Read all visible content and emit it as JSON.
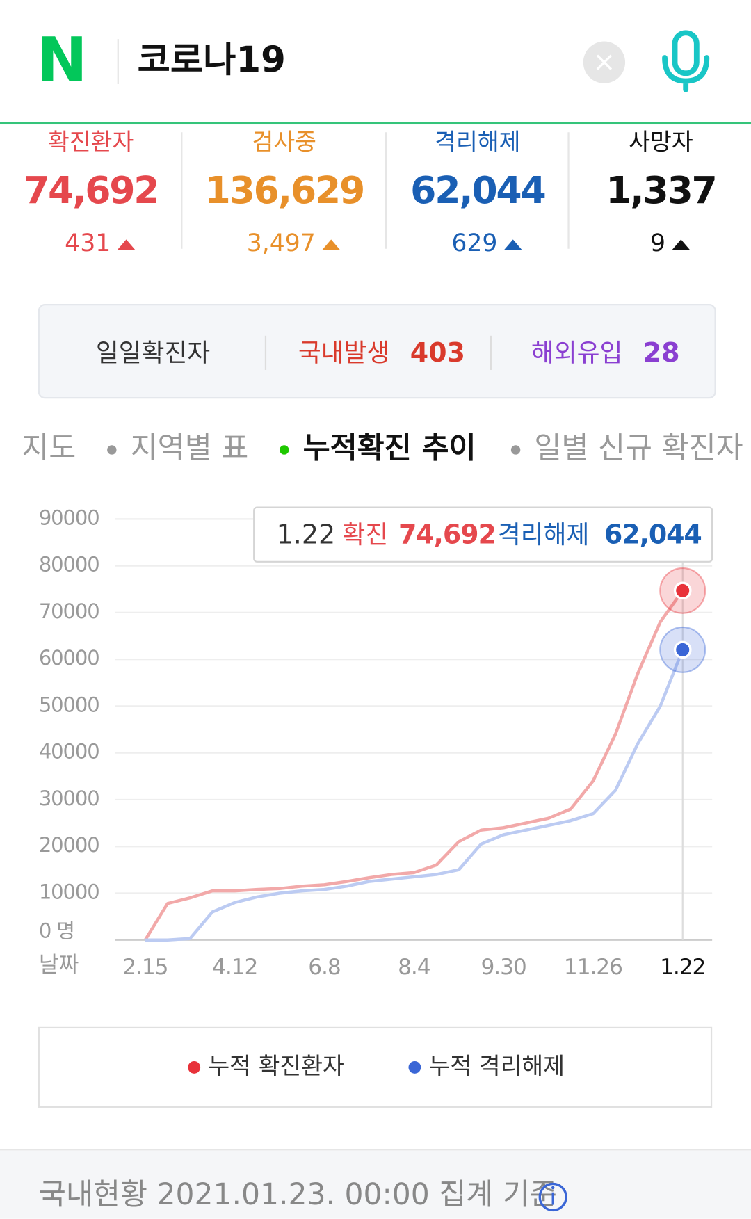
{
  "header": {
    "logo": "N",
    "query": "코로나19"
  },
  "stats": [
    {
      "label": "확진환자",
      "value": "74,692",
      "change": "431"
    },
    {
      "label": "검사중",
      "value": "136,629",
      "change": "3,497"
    },
    {
      "label": "격리해제",
      "value": "62,044",
      "change": "629"
    },
    {
      "label": "사망자",
      "value": "1,337",
      "change": "9"
    }
  ],
  "daily": {
    "label": "일일확진자",
    "domestic_label": "국내발생",
    "domestic": "403",
    "overseas_label": "해외유입",
    "overseas": "28"
  },
  "tabs": [
    "지도",
    "지역별 표",
    "누적확진 추이",
    "일별 신규 확진자"
  ],
  "chart_data": {
    "type": "line",
    "categories": [
      "2.15",
      null,
      null,
      null,
      "4.12",
      null,
      null,
      null,
      "6.8",
      null,
      null,
      null,
      "8.4",
      null,
      null,
      null,
      "9.30",
      null,
      null,
      null,
      "11.26",
      null,
      null,
      null,
      "1.22"
    ],
    "x_label": "날짜",
    "series": [
      {
        "name": "누적 확진환자",
        "color": "#f2a9a9",
        "marker_color": "#e8323a",
        "values": [
          0,
          7800,
          9000,
          10500,
          10500,
          10800,
          11000,
          11500,
          11800,
          12500,
          13300,
          14000,
          14400,
          16000,
          21000,
          23500,
          24000,
          25000,
          26000,
          28000,
          34000,
          44000,
          57000,
          68000,
          74692
        ]
      },
      {
        "name": "누적 격리해제",
        "color": "#bccbf2",
        "marker_color": "#3a66d6",
        "values": [
          0,
          0,
          300,
          6000,
          8000,
          9200,
          10000,
          10500,
          10800,
          11500,
          12500,
          13000,
          13500,
          14000,
          15000,
          20500,
          22500,
          23500,
          24500,
          25500,
          27000,
          32000,
          42000,
          50000,
          62044
        ]
      }
    ],
    "ylim": [
      0,
      90000
    ],
    "yticks": [
      {
        "value": 0,
        "label": "0 명"
      },
      10000,
      20000,
      30000,
      40000,
      50000,
      60000,
      70000,
      80000,
      90000
    ],
    "grid": true,
    "tooltip": {
      "category": "1.22",
      "items": [
        {
          "name": "확진",
          "value": "74,692"
        },
        {
          "name": "격리해제",
          "value": "62,044"
        }
      ]
    }
  },
  "footer": {
    "text": "국내현황 2021.01.23. 00:00 집계 기준"
  }
}
